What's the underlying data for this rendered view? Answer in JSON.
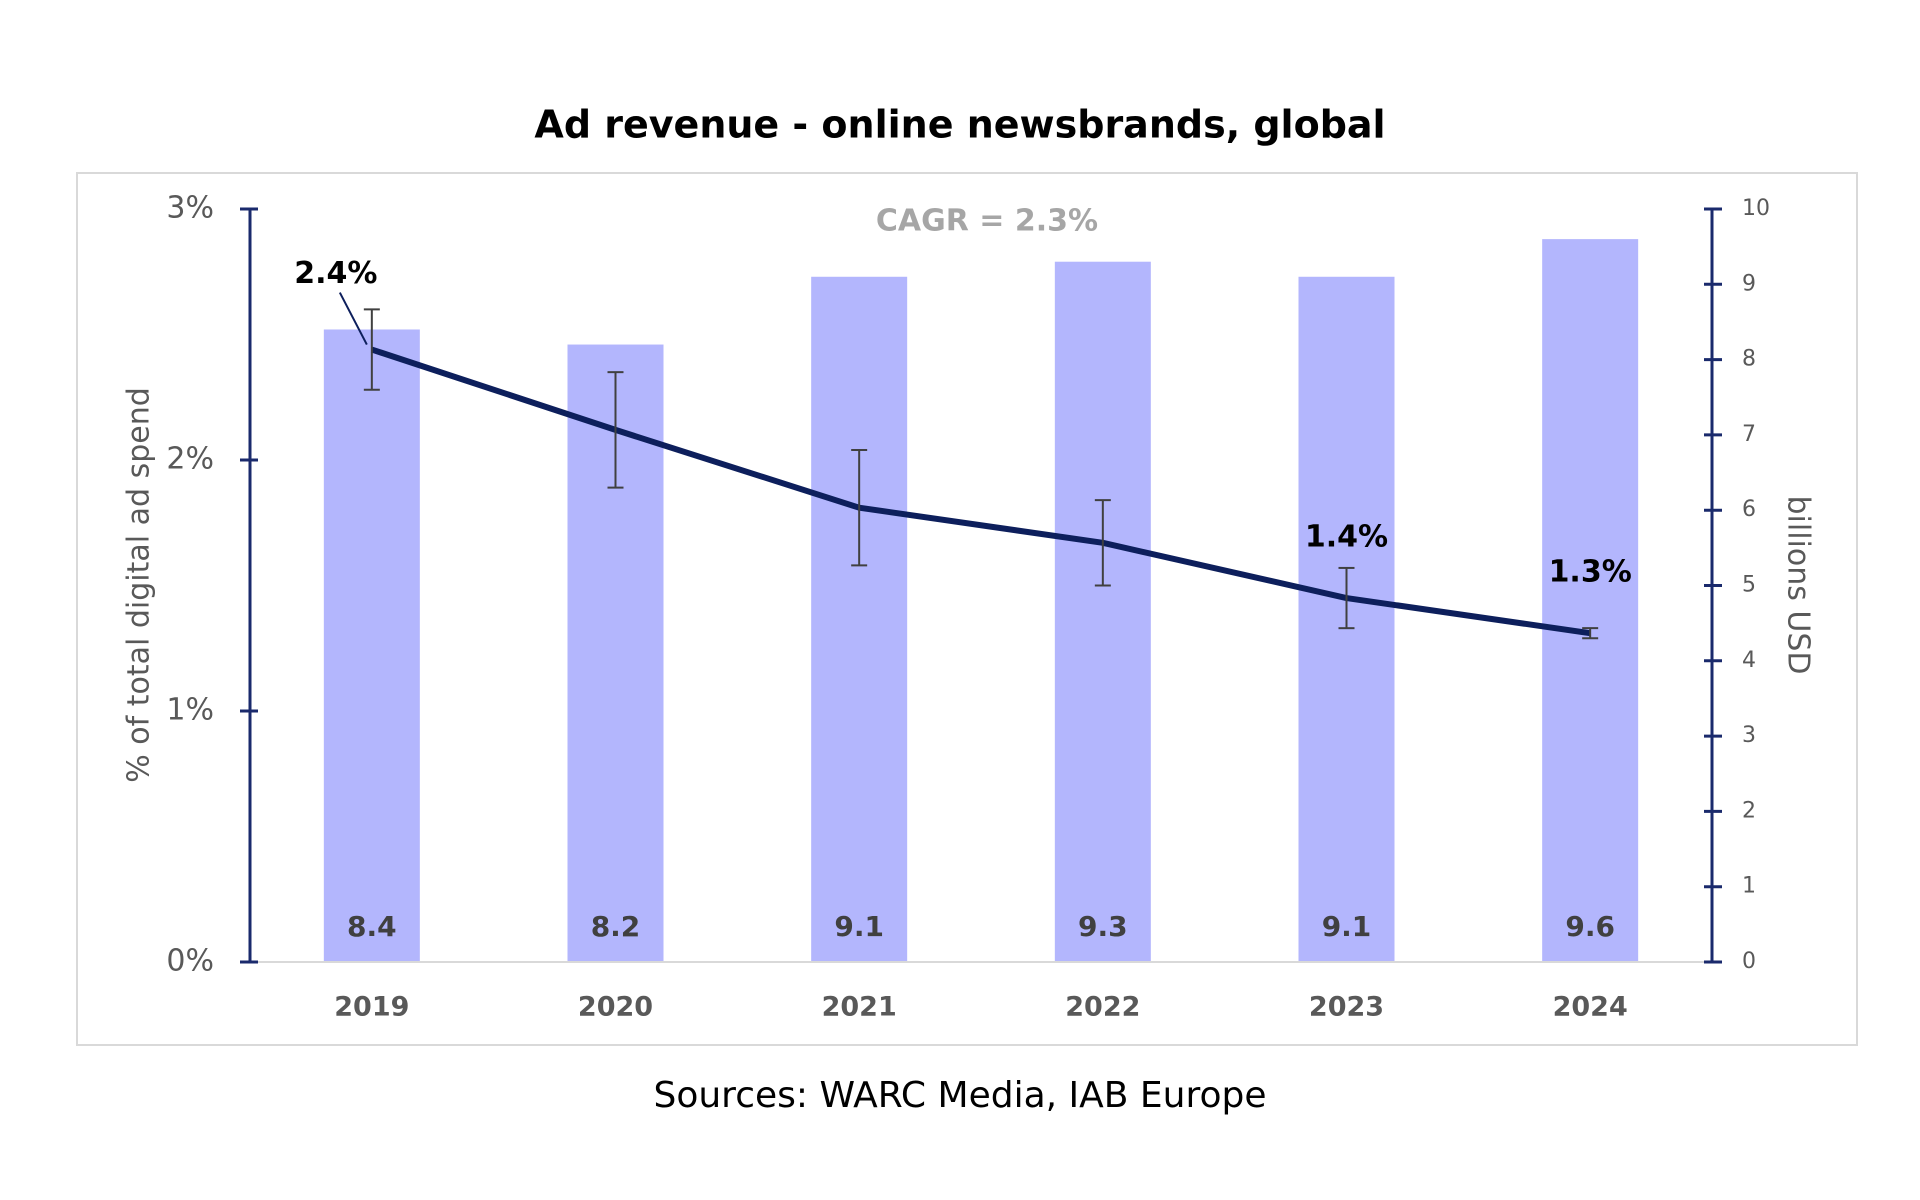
{
  "chart_data": {
    "type": "combo",
    "title": "Ad revenue - online newsbrands, global",
    "annotation": "CAGR = 2.3%",
    "source": "Sources: WARC Media, IAB Europe",
    "y_label": "% of total digital ad spend",
    "y2_label": "billions USD",
    "categories": [
      "2019",
      "2020",
      "2021",
      "2022",
      "2023",
      "2024"
    ],
    "series": [
      {
        "type": "bar",
        "axis": "y2",
        "color": "#b3b6fd",
        "values": [
          8.4,
          8.2,
          9.1,
          9.3,
          9.1,
          9.6
        ]
      },
      {
        "type": "line",
        "axis": "y",
        "color": "#0d1f5c",
        "values": [
          2.44,
          2.12,
          1.81,
          1.67,
          1.45,
          1.31
        ],
        "errors": [
          0.16,
          0.23,
          0.23,
          0.17,
          0.12,
          0.02
        ],
        "value_labels": [
          "2.4%",
          null,
          null,
          null,
          "1.4%",
          "1.3%"
        ]
      }
    ],
    "ylim": [
      0,
      3
    ],
    "yticks": [
      {
        "value": 0,
        "label": "0%"
      },
      {
        "value": 1,
        "label": "1%"
      },
      {
        "value": 2,
        "label": "2%"
      },
      {
        "value": 3,
        "label": "3%"
      }
    ],
    "y2lim": [
      0,
      10
    ],
    "y2ticks": [
      0,
      1,
      2,
      3,
      4,
      5,
      6,
      7,
      8,
      9,
      10
    ],
    "grid": false
  }
}
